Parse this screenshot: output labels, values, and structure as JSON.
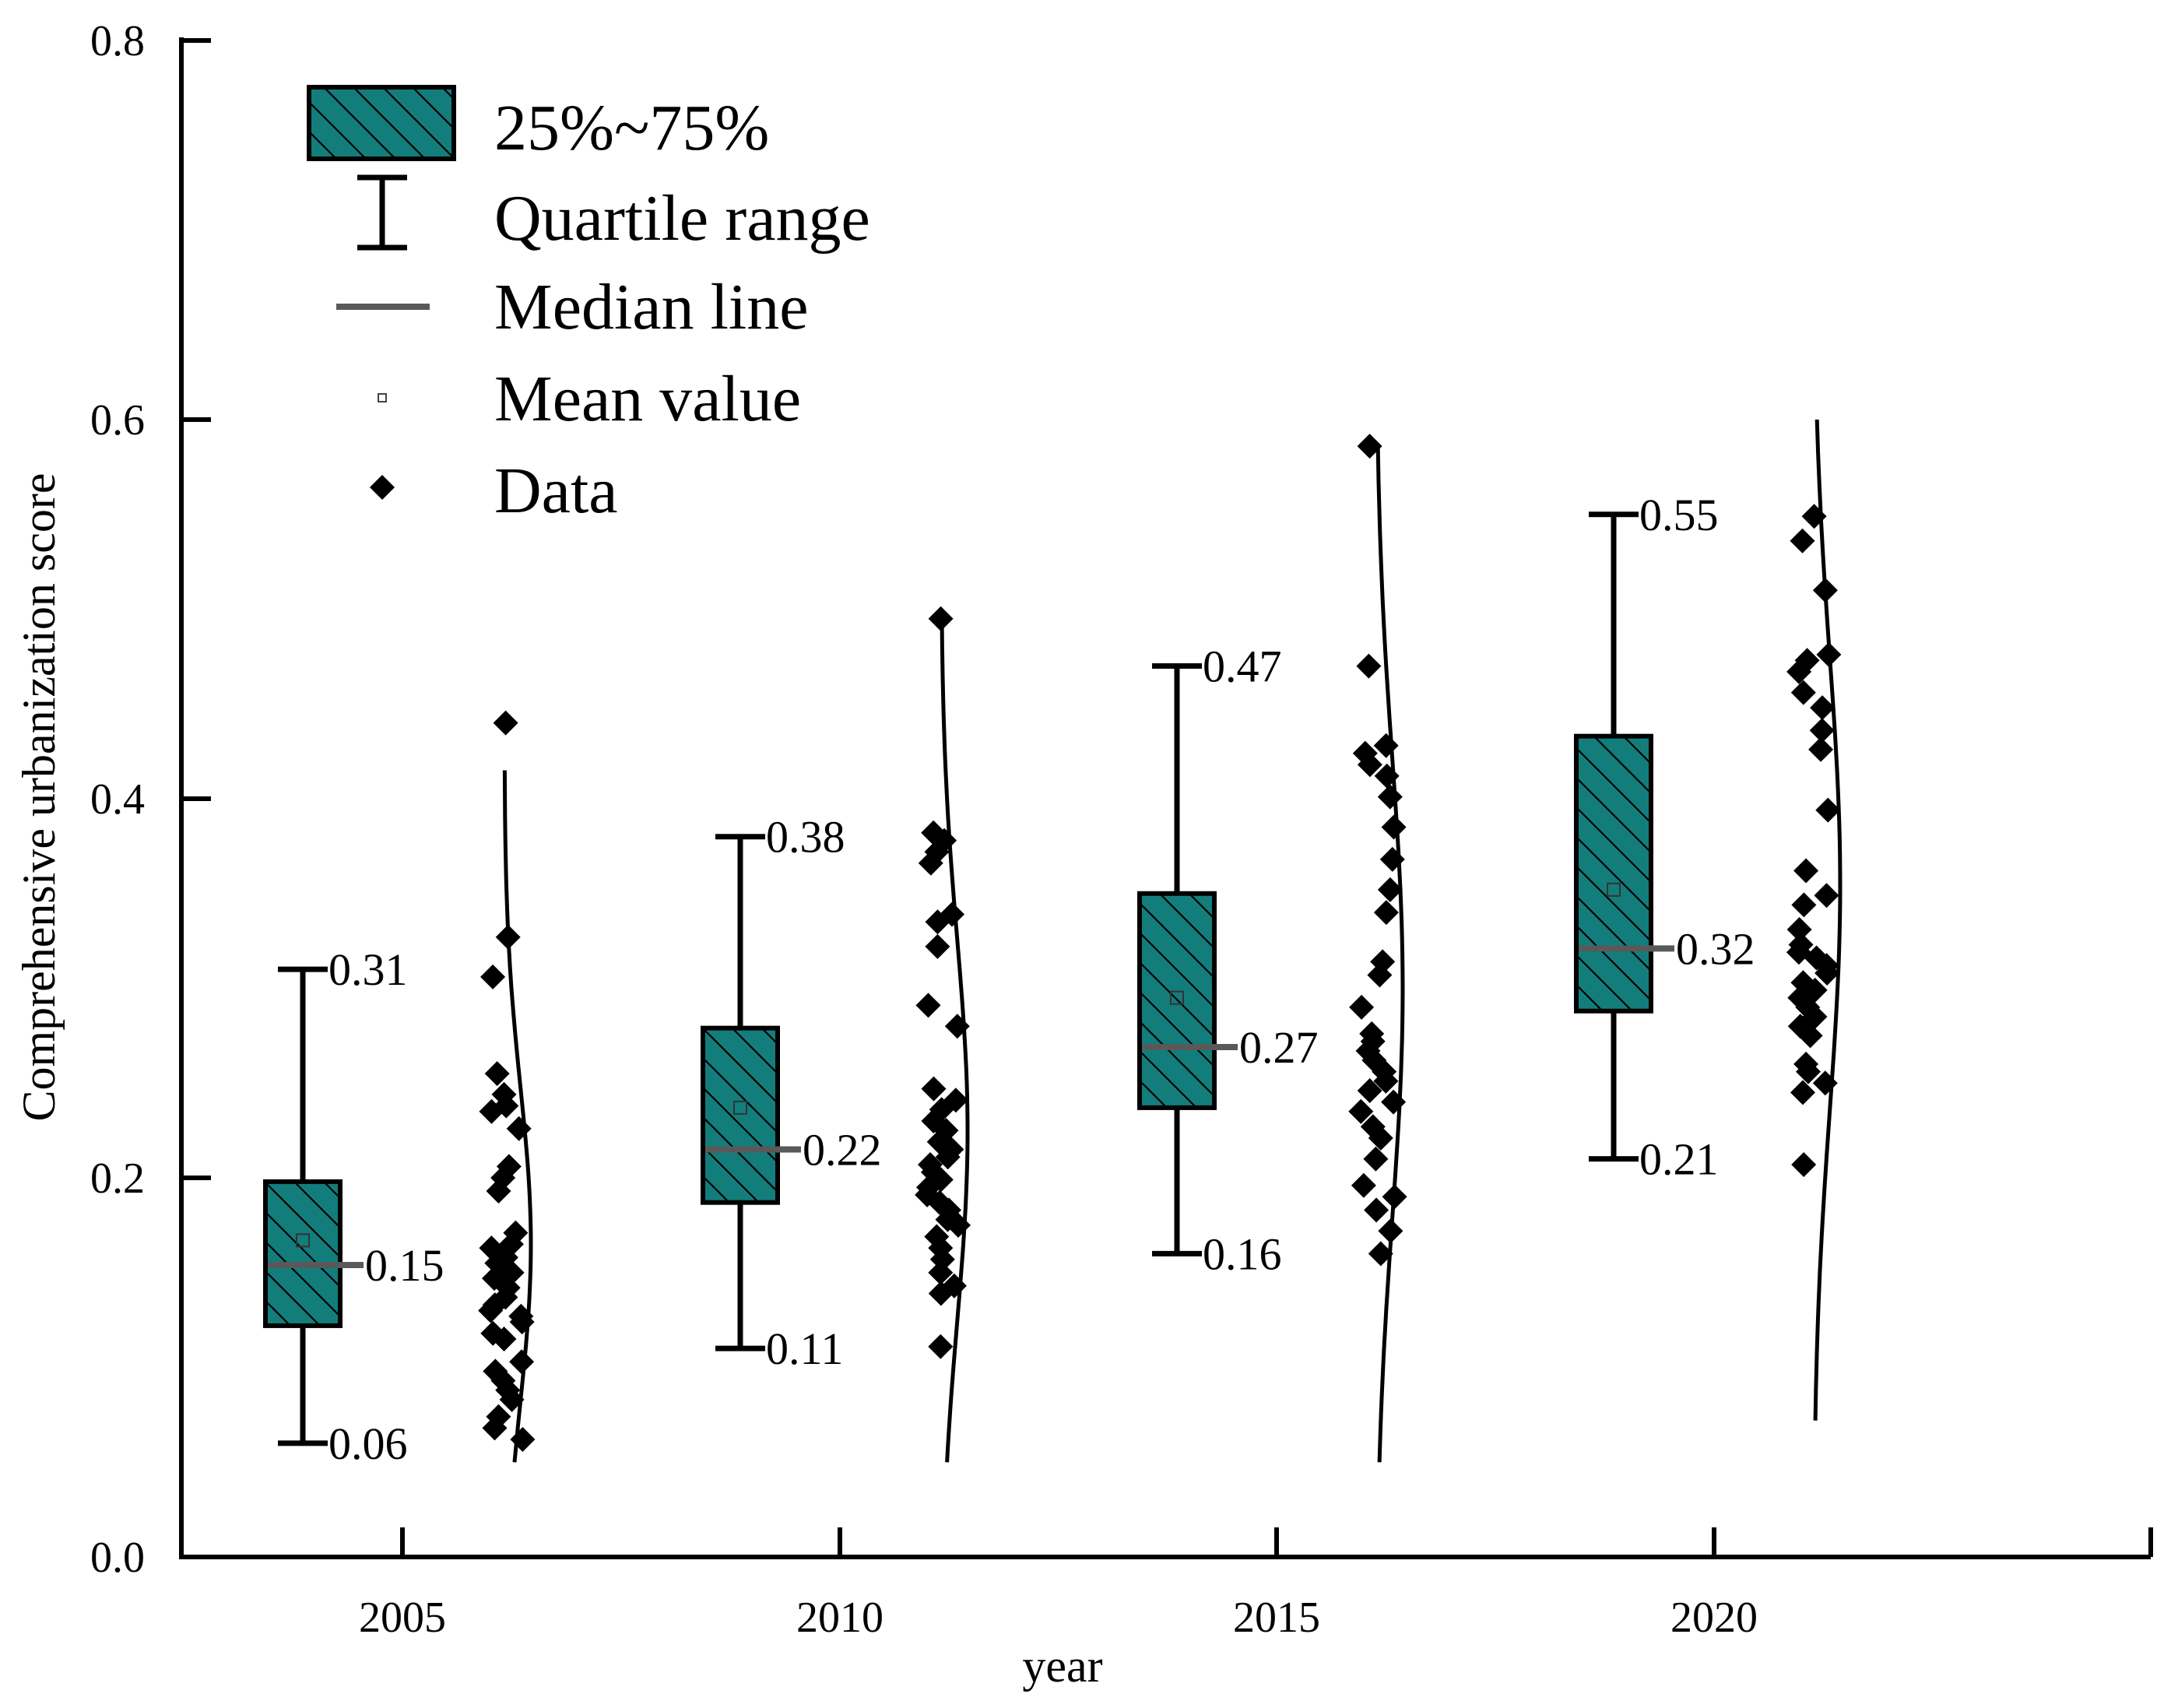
{
  "chart_data": {
    "type": "box",
    "title": "",
    "xlabel": "year",
    "ylabel": "Comprehensive urbanization score",
    "ylim": [
      0,
      0.8
    ],
    "yticks": [
      "0.0",
      "0.2",
      "0.4",
      "0.6",
      "0.8"
    ],
    "xticks": [
      "2005",
      "2010",
      "2015",
      "2020"
    ],
    "grid": false,
    "legend": {
      "position": "top-left",
      "entries": [
        "25%~75%",
        "Quartile range",
        "Median line",
        "Mean value",
        "Data"
      ]
    },
    "colors": {
      "box_fill": "#137d7c",
      "median": "#595959",
      "data": "#000000"
    },
    "groups": [
      {
        "year": "2005",
        "q1": 0.122,
        "q3": 0.198,
        "median": 0.154,
        "mean": 0.167,
        "whisker_low": 0.06,
        "whisker_high": 0.31,
        "label_low": "0.06",
        "label_high": "0.31",
        "label_median": "0.15",
        "density_range": [
          0.05,
          0.415
        ],
        "density_peak": 0.165,
        "points": [
          0.44,
          0.327,
          0.306,
          0.255,
          0.244,
          0.238,
          0.235,
          0.226,
          0.206,
          0.2,
          0.193,
          0.171,
          0.165,
          0.163,
          0.158,
          0.155,
          0.15,
          0.147,
          0.142,
          0.137,
          0.133,
          0.13,
          0.127,
          0.124,
          0.118,
          0.115,
          0.103,
          0.098,
          0.093,
          0.088,
          0.083,
          0.074,
          0.068,
          0.062
        ]
      },
      {
        "year": "2010",
        "q1": 0.187,
        "q3": 0.279,
        "median": 0.215,
        "mean": 0.237,
        "whisker_low": 0.11,
        "whisker_high": 0.38,
        "label_low": "0.11",
        "label_high": "0.38",
        "label_median": "0.22",
        "density_range": [
          0.05,
          0.495
        ],
        "density_peak": 0.225,
        "points": [
          0.495,
          0.382,
          0.378,
          0.372,
          0.366,
          0.339,
          0.335,
          0.322,
          0.291,
          0.28,
          0.247,
          0.241,
          0.236,
          0.23,
          0.225,
          0.219,
          0.215,
          0.211,
          0.207,
          0.203,
          0.199,
          0.195,
          0.191,
          0.187,
          0.183,
          0.178,
          0.175,
          0.169,
          0.163,
          0.157,
          0.15,
          0.143,
          0.139,
          0.111
        ]
      },
      {
        "year": "2015",
        "q1": 0.237,
        "q3": 0.35,
        "median": 0.269,
        "mean": 0.295,
        "whisker_low": 0.16,
        "whisker_high": 0.47,
        "label_low": "0.16",
        "label_high": "0.47",
        "label_median": "0.27",
        "density_range": [
          0.05,
          0.585
        ],
        "density_peak": 0.3,
        "points": [
          0.586,
          0.47,
          0.428,
          0.424,
          0.418,
          0.412,
          0.401,
          0.385,
          0.368,
          0.352,
          0.34,
          0.314,
          0.307,
          0.29,
          0.276,
          0.272,
          0.267,
          0.262,
          0.256,
          0.251,
          0.246,
          0.24,
          0.235,
          0.227,
          0.221,
          0.21,
          0.196,
          0.19,
          0.183,
          0.172,
          0.16
        ]
      },
      {
        "year": "2020",
        "q1": 0.288,
        "q3": 0.433,
        "median": 0.321,
        "mean": 0.352,
        "whisker_low": 0.21,
        "whisker_high": 0.55,
        "label_low": "0.21",
        "label_high": "0.55",
        "label_median": "0.32",
        "density_range": [
          0.072,
          0.6
        ],
        "density_peak": 0.355,
        "points": [
          0.549,
          0.536,
          0.51,
          0.476,
          0.473,
          0.467,
          0.456,
          0.448,
          0.436,
          0.426,
          0.394,
          0.362,
          0.349,
          0.344,
          0.331,
          0.323,
          0.319,
          0.316,
          0.312,
          0.308,
          0.303,
          0.299,
          0.295,
          0.29,
          0.285,
          0.28,
          0.275,
          0.26,
          0.256,
          0.25,
          0.245,
          0.207
        ]
      }
    ]
  }
}
